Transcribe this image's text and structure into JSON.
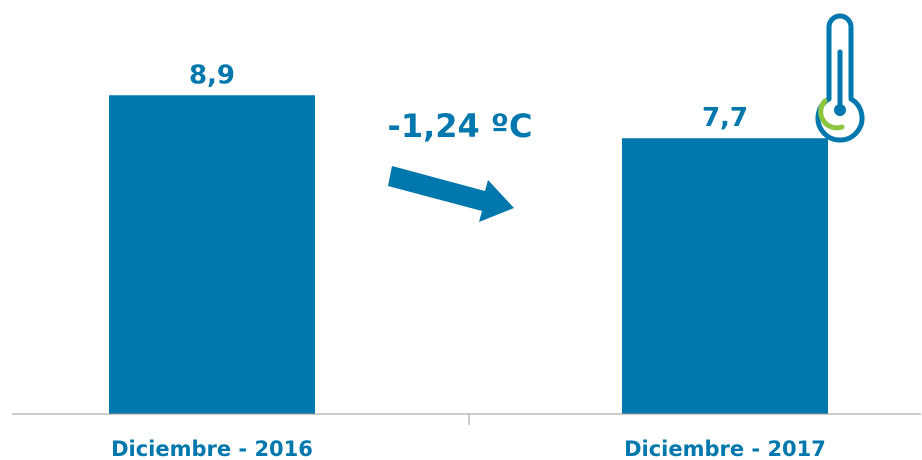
{
  "chart_data": {
    "type": "bar",
    "categories": [
      "Diciembre - 2016",
      "Diciembre - 2017"
    ],
    "values": [
      8.9,
      7.7
    ],
    "value_labels": [
      "8,9",
      "7,7"
    ],
    "ylim": [
      0,
      11.56
    ],
    "grid": false,
    "legend": "none",
    "annotation": "-1,24 ºC",
    "colors": {
      "bar": "#0077ad",
      "label": "#0077ad",
      "axis": "#9a9a9a",
      "thermometer": "#0077ad",
      "thermometer_accent": "#8cc63f"
    },
    "icons": [
      "thermometer-icon",
      "arrow-down-right-icon"
    ]
  }
}
